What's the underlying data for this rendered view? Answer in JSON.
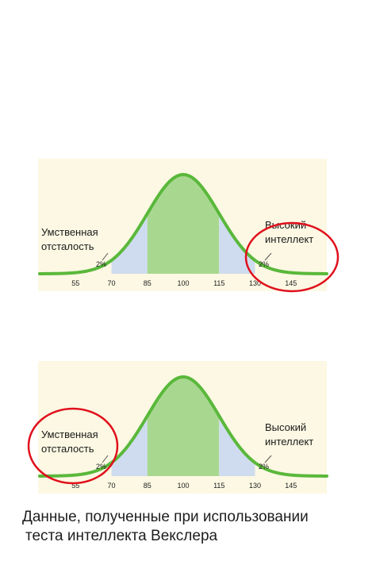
{
  "chart_data": [
    {
      "type": "area",
      "distribution": "normal",
      "mean": 100,
      "sd": 15,
      "xlim": [
        40,
        160
      ],
      "ticks": [
        55,
        70,
        85,
        100,
        115,
        130,
        145
      ],
      "shaded_bands": [
        {
          "from": 70,
          "to": 85,
          "color": "#cfdcef"
        },
        {
          "from": 85,
          "to": 115,
          "color": "#a8d890"
        },
        {
          "from": 115,
          "to": 130,
          "color": "#cfdcef"
        }
      ],
      "curve_color": "#5ab83b",
      "background_color": "#fcf8e3",
      "annotations": {
        "left_label_line1": "Умственная",
        "left_label_line2": "отсталость",
        "left_pct": "2%",
        "right_label_line1": "Высокий",
        "right_label_line2": "интеллект",
        "right_pct": "2%"
      },
      "highlight": "right",
      "highlight_color": "#e0101c"
    },
    {
      "type": "area",
      "distribution": "normal",
      "mean": 100,
      "sd": 15,
      "xlim": [
        40,
        160
      ],
      "ticks": [
        55,
        70,
        85,
        100,
        115,
        130,
        145
      ],
      "shaded_bands": [
        {
          "from": 70,
          "to": 85,
          "color": "#cfdcef"
        },
        {
          "from": 85,
          "to": 115,
          "color": "#a8d890"
        },
        {
          "from": 115,
          "to": 130,
          "color": "#cfdcef"
        }
      ],
      "curve_color": "#5ab83b",
      "background_color": "#fcf8e3",
      "annotations": {
        "left_label_line1": "Умственная",
        "left_label_line2": "отсталость",
        "left_pct": "2%",
        "right_label_line1": "Высокий",
        "right_label_line2": "интеллект",
        "right_pct": "2%"
      },
      "highlight": "left",
      "highlight_color": "#e0101c"
    }
  ],
  "caption": {
    "line1": "Данные, полученные при использовании",
    "line2": "теста интеллекта Векслера"
  }
}
